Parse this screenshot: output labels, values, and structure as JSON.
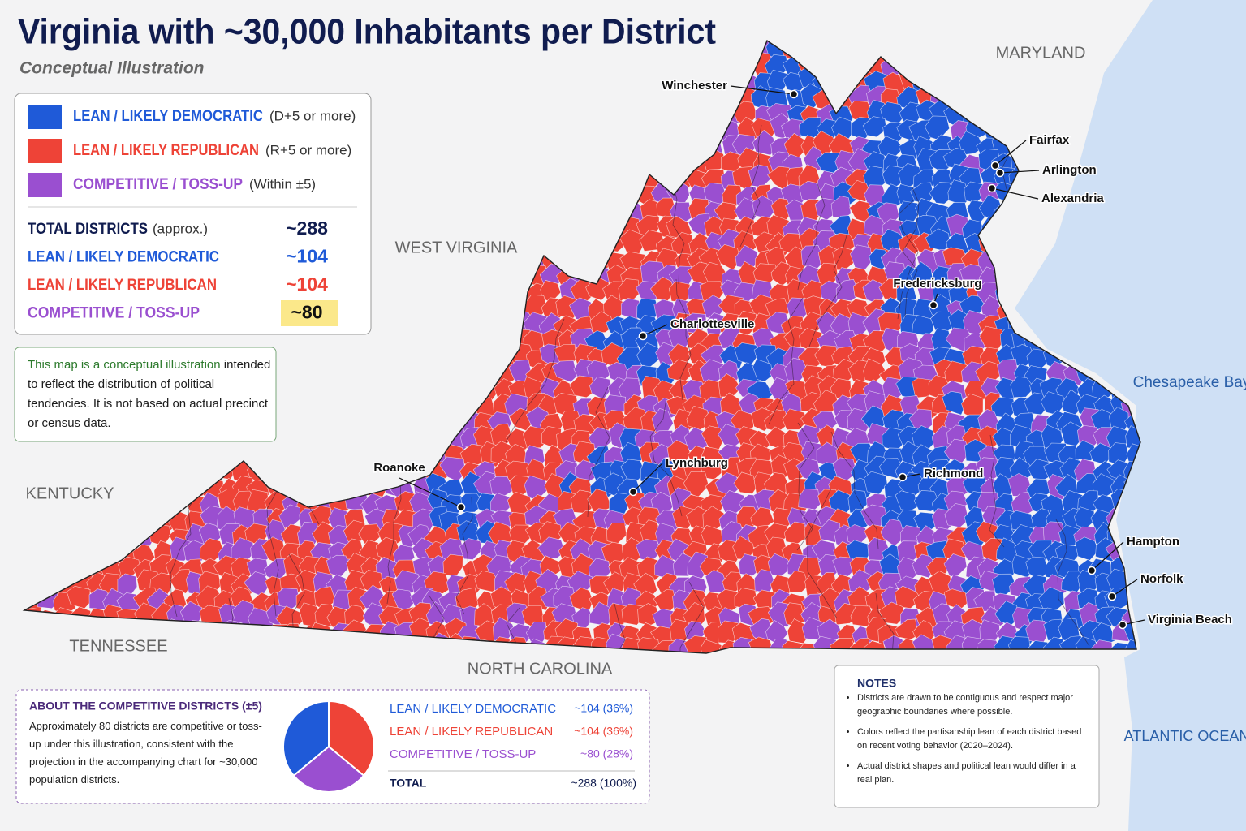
{
  "title": "Virginia with ~30,000 Inhabitants per District",
  "subtitle": "Conceptual Illustration",
  "legend": {
    "items": [
      {
        "label": "LEAN / LIKELY DEMOCRATIC",
        "note": "(D+5 or more)",
        "color": "#1f5ad8"
      },
      {
        "label": "LEAN / LIKELY REPUBLICAN",
        "note": "(R+5 or more)",
        "color": "#ee4337"
      },
      {
        "label": "COMPETITIVE / TOSS-UP",
        "note": "(Within ±5)",
        "color": "#9a4fd0"
      }
    ],
    "totals": [
      {
        "label": "TOTAL DISTRICTS",
        "note": "(approx.)",
        "value": "~288"
      },
      {
        "label": "LEAN / LIKELY DEMOCRATIC",
        "value": "~104"
      },
      {
        "label": "LEAN / LIKELY REPUBLICAN",
        "value": "~104"
      },
      {
        "label": "COMPETITIVE / TOSS-UP",
        "value": "~80"
      }
    ]
  },
  "disclaimer": {
    "lead": "This map is a conceptual illustration",
    "text": "intended to reflect the distribution of political tendencies. It is not based on actual precinct or census data."
  },
  "map": {
    "neighbors": [
      "MARYLAND",
      "WEST VIRGINIA",
      "KENTUCKY",
      "TENNESSEE",
      "NORTH CAROLINA"
    ],
    "water": [
      "Chesapeake Bay",
      "ATLANTIC OCEAN"
    ],
    "cities": [
      "Winchester",
      "Fairfax",
      "Arlington",
      "Alexandria",
      "Fredericksburg",
      "Charlottesville",
      "Richmond",
      "Lynchburg",
      "Roanoke",
      "Hampton",
      "Norfolk",
      "Virginia Beach"
    ]
  },
  "competitive_box": {
    "title": "ABOUT THE COMPETITIVE DISTRICTS (±5)",
    "text": "Approximately 80 districts are competitive or toss-up under this illustration, consistent with the projection in the accompanying chart for ~30,000 population districts.",
    "total_label": "TOTAL",
    "total_value_label": "~288 (100%)"
  },
  "chart_data": {
    "type": "pie",
    "categories": [
      "LEAN / LIKELY DEMOCRATIC",
      "LEAN / LIKELY REPUBLICAN",
      "COMPETITIVE / TOSS-UP"
    ],
    "values": [
      36,
      36,
      28
    ],
    "value_labels": [
      "~104 (36%)",
      "~104 (36%)",
      "~80 (28%)"
    ],
    "colors": [
      "#1f5ad8",
      "#ee4337",
      "#9a4fd0"
    ]
  },
  "notes": {
    "title": "NOTES",
    "items": [
      "Districts are drawn to be contiguous and respect major geographic boundaries where possible.",
      "Colors reflect the partisanship lean of each district based on recent voting behavior (2020–2024).",
      "Actual district shapes and political lean would differ in a real plan."
    ]
  }
}
